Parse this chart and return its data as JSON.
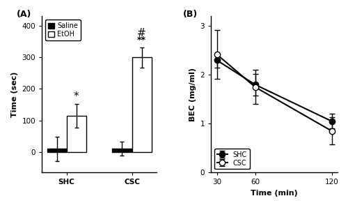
{
  "panel_a": {
    "groups": [
      "SHC",
      "CSC"
    ],
    "saline_means": [
      10,
      10
    ],
    "saline_sems": [
      38,
      22
    ],
    "etoh_means": [
      115,
      300
    ],
    "etoh_sems": [
      38,
      32
    ],
    "ylabel": "Time (sec)",
    "ylim": [
      -65,
      430
    ],
    "yticks": [
      0,
      100,
      200,
      300,
      400
    ],
    "bar_width": 0.3,
    "saline_color": "#000000",
    "etoh_color": "#ffffff",
    "label": "(A)"
  },
  "panel_b": {
    "timepoints": [
      30,
      60,
      120
    ],
    "shc_means": [
      2.3,
      1.8,
      1.05
    ],
    "shc_sems": [
      0.15,
      0.22,
      0.15
    ],
    "csc_means": [
      2.42,
      1.75,
      0.85
    ],
    "csc_sems": [
      0.5,
      0.35,
      0.28
    ],
    "xlabel": "Time (min)",
    "ylabel": "BEC (mg/ml)",
    "ylim": [
      0,
      3.2
    ],
    "yticks": [
      0,
      1,
      2,
      3
    ],
    "xticks": [
      30,
      60,
      120
    ],
    "label": "(B)"
  }
}
